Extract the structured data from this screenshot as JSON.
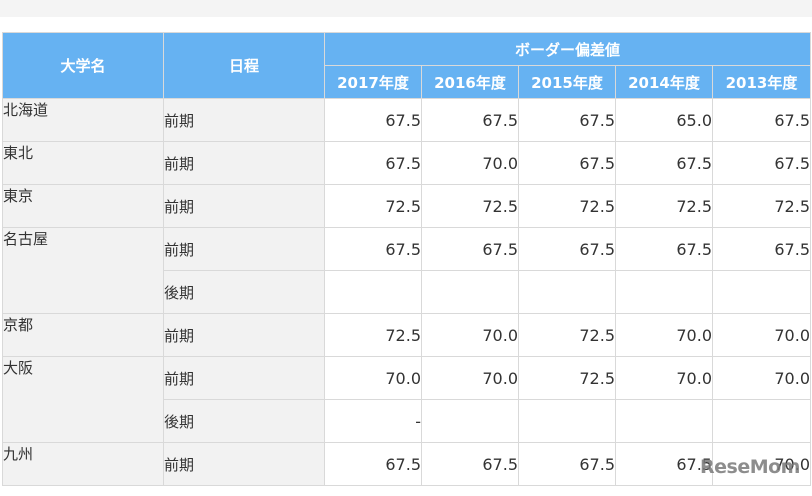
{
  "table": {
    "header": {
      "university": "大学名",
      "schedule": "日程",
      "group": "ボーダー偏差値",
      "years": [
        "2017年度",
        "2016年度",
        "2015年度",
        "2014年度",
        "2013年度"
      ]
    },
    "universities": [
      {
        "name": "北海道",
        "rows": [
          {
            "schedule": "前期",
            "values": [
              "67.5",
              "67.5",
              "67.5",
              "65.0",
              "67.5"
            ]
          }
        ]
      },
      {
        "name": "東北",
        "rows": [
          {
            "schedule": "前期",
            "values": [
              "67.5",
              "70.0",
              "67.5",
              "67.5",
              "67.5"
            ]
          }
        ]
      },
      {
        "name": "東京",
        "rows": [
          {
            "schedule": "前期",
            "values": [
              "72.5",
              "72.5",
              "72.5",
              "72.5",
              "72.5"
            ]
          }
        ]
      },
      {
        "name": "名古屋",
        "rows": [
          {
            "schedule": "前期",
            "values": [
              "67.5",
              "67.5",
              "67.5",
              "67.5",
              "67.5"
            ]
          },
          {
            "schedule": "後期",
            "values": [
              "",
              "",
              "",
              "",
              ""
            ]
          }
        ]
      },
      {
        "name": "京都",
        "rows": [
          {
            "schedule": "前期",
            "values": [
              "72.5",
              "70.0",
              "72.5",
              "70.0",
              "70.0"
            ]
          }
        ]
      },
      {
        "name": "大阪",
        "rows": [
          {
            "schedule": "前期",
            "values": [
              "70.0",
              "70.0",
              "72.5",
              "70.0",
              "70.0"
            ]
          },
          {
            "schedule": "後期",
            "values": [
              "-",
              "",
              "",
              "",
              ""
            ]
          }
        ]
      },
      {
        "name": "九州",
        "rows": [
          {
            "schedule": "前期",
            "values": [
              "67.5",
              "67.5",
              "67.5",
              "67.5",
              "70.0"
            ]
          }
        ]
      }
    ]
  },
  "logo": {
    "text": "ReseMom"
  }
}
